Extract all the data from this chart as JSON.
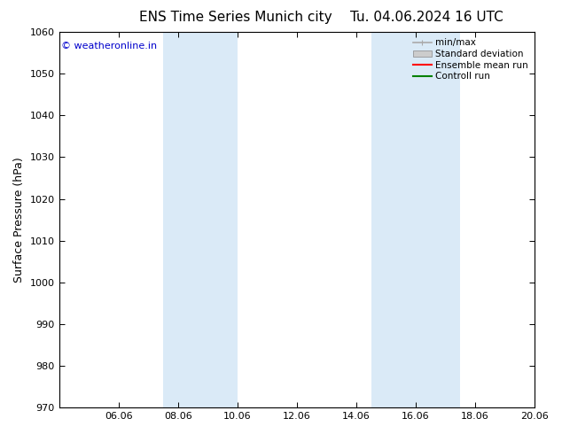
{
  "title_left": "ENS Time Series Munich city",
  "title_right": "Tu. 04.06.2024 16 UTC",
  "ylabel": "Surface Pressure (hPa)",
  "ylim": [
    970,
    1060
  ],
  "yticks": [
    970,
    980,
    990,
    1000,
    1010,
    1020,
    1030,
    1040,
    1050,
    1060
  ],
  "xlim": [
    4.0,
    20.0
  ],
  "xtick_labels": [
    "06.06",
    "08.06",
    "10.06",
    "12.06",
    "14.06",
    "16.06",
    "18.06",
    "20.06"
  ],
  "xtick_positions": [
    6.0,
    8.0,
    10.0,
    12.0,
    14.0,
    16.0,
    18.0,
    20.0
  ],
  "shaded_bands": [
    {
      "x_start": 7.5,
      "x_end": 10.0,
      "color": "#daeaf7"
    },
    {
      "x_start": 14.5,
      "x_end": 17.5,
      "color": "#daeaf7"
    }
  ],
  "copyright_text": "© weatheronline.in",
  "copyright_color": "#0000cc",
  "legend_entries": [
    {
      "label": "min/max",
      "color": "#aaaaaa",
      "type": "errorbar"
    },
    {
      "label": "Standard deviation",
      "color": "#cccccc",
      "type": "band"
    },
    {
      "label": "Ensemble mean run",
      "color": "#ff0000",
      "type": "line"
    },
    {
      "label": "Controll run",
      "color": "#008000",
      "type": "line"
    }
  ],
  "bg_color": "#ffffff",
  "font_family": "DejaVu Sans",
  "title_fontsize": 11,
  "axis_label_fontsize": 9,
  "tick_fontsize": 8,
  "legend_fontsize": 7.5
}
